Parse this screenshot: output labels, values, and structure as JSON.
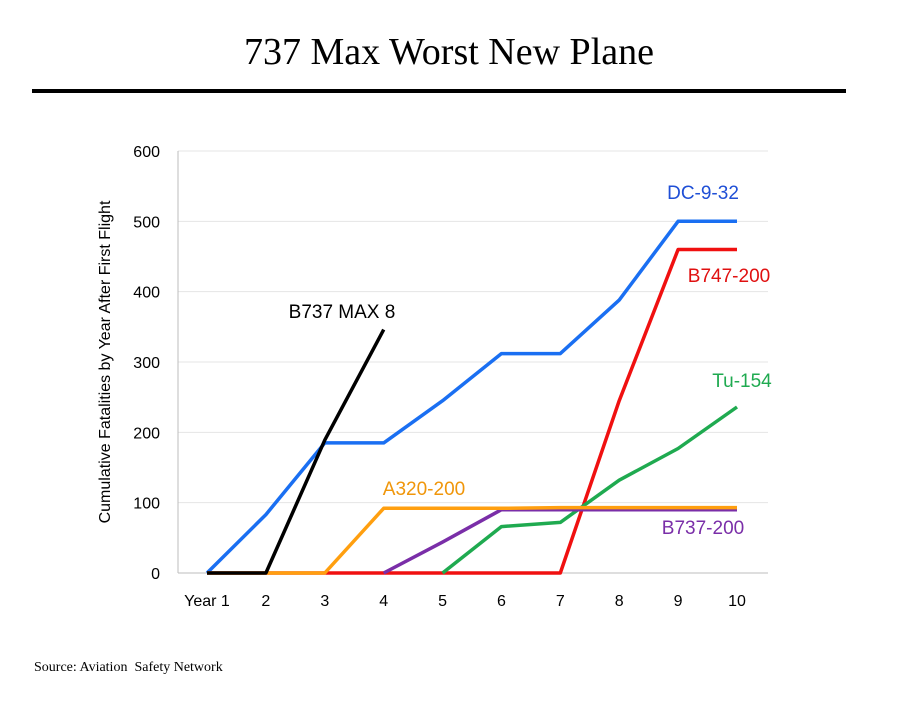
{
  "page": {
    "title": "737 Max Worst New Plane",
    "source": "Source: Aviation  Safety Network"
  },
  "chart_data": {
    "type": "line",
    "title": "",
    "xlabel": "",
    "ylabel": "Cumulative Fatalities by Year After First Flight",
    "categories": [
      "Year 1",
      "2",
      "3",
      "4",
      "5",
      "6",
      "7",
      "8",
      "9",
      "10"
    ],
    "x": [
      1,
      2,
      3,
      4,
      5,
      6,
      7,
      8,
      9,
      10
    ],
    "xlim": [
      1,
      10
    ],
    "ylim": [
      0,
      600
    ],
    "yticks": [
      0,
      100,
      200,
      300,
      400,
      500,
      600
    ],
    "grid": "horizontal",
    "legend": "none; series labels placed next to lines",
    "series": [
      {
        "name": "DC-9-32",
        "color": "#1a6ff2",
        "label_color": "#1f4fd6",
        "x": [
          1,
          2,
          3,
          4,
          5,
          6,
          7,
          8,
          9,
          10
        ],
        "values": [
          0,
          83,
          185,
          185,
          245,
          312,
          312,
          388,
          500,
          500
        ]
      },
      {
        "name": "B747-200",
        "color": "#f01010",
        "label_color": "#e01010",
        "x": [
          1,
          2,
          3,
          4,
          5,
          6,
          7,
          8,
          9,
          10
        ],
        "values": [
          0,
          0,
          0,
          0,
          0,
          0,
          0,
          245,
          460,
          460
        ]
      },
      {
        "name": "Tu-154",
        "color": "#1faa50",
        "label_color": "#1faa50",
        "x": [
          5,
          6,
          7,
          8,
          9,
          10
        ],
        "values": [
          0,
          66,
          72,
          132,
          177,
          236
        ]
      },
      {
        "name": "B737-200",
        "color": "#7a2ea8",
        "label_color": "#7a2ea8",
        "x": [
          4,
          5,
          6,
          7,
          8,
          9,
          10
        ],
        "values": [
          0,
          44,
          90,
          90,
          90,
          90,
          90
        ]
      },
      {
        "name": "A320-200",
        "color": "#ff9f0f",
        "label_color": "#f0960a",
        "x": [
          1,
          2,
          3,
          4,
          5,
          6,
          7,
          8,
          9,
          10
        ],
        "values": [
          0,
          0,
          0,
          92,
          92,
          92,
          93,
          93,
          93,
          93
        ]
      },
      {
        "name": "B737 MAX 8",
        "color": "#000000",
        "label_color": "#000000",
        "x": [
          1,
          2,
          3,
          4
        ],
        "values": [
          0,
          0,
          189,
          346
        ]
      }
    ]
  }
}
